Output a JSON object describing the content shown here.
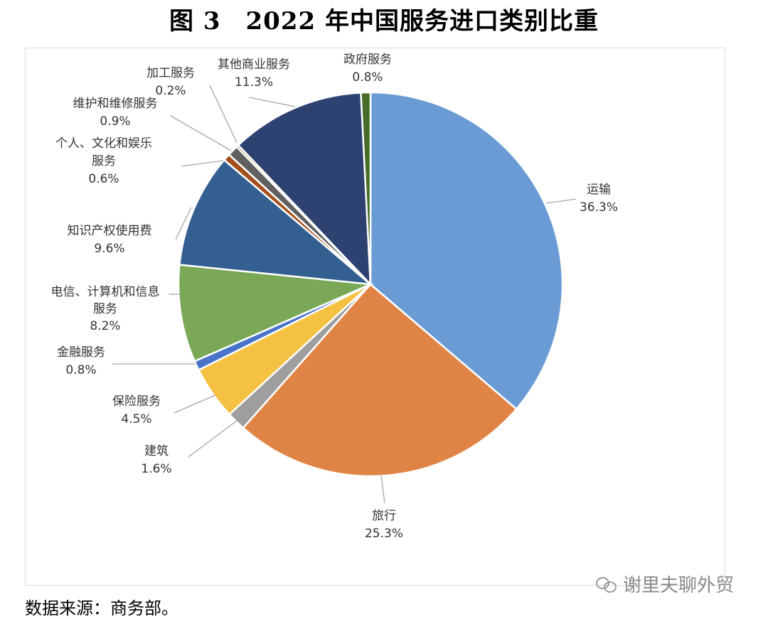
{
  "title": "图 3　2022 年中国服务进口类别比重",
  "source": "数据来源：商务部。",
  "watermark": "谢里夫聊外贸",
  "chart_data": {
    "type": "pie",
    "title": "图 3　2022 年中国服务进口类别比重",
    "start": "12 o'clock, clockwise",
    "slices": [
      {
        "label": "运输",
        "value": 36.3,
        "value_label": "36.3%",
        "color": "#6a9bd4"
      },
      {
        "label": "旅行",
        "value": 25.3,
        "value_label": "25.3%",
        "color": "#e08446"
      },
      {
        "label": "建筑",
        "value": 1.6,
        "value_label": "1.6%",
        "color": "#9e9e9e"
      },
      {
        "label": "保险服务",
        "value": 4.5,
        "value_label": "4.5%",
        "color": "#f5c142"
      },
      {
        "label": "金融服务",
        "value": 0.8,
        "value_label": "0.8%",
        "color": "#4a74c9"
      },
      {
        "label": "电信、计算机和信息服务",
        "value": 8.2,
        "value_label": "8.2%",
        "color": "#7aa857"
      },
      {
        "label": "知识产权使用费",
        "value": 9.6,
        "value_label": "9.6%",
        "color": "#335f91"
      },
      {
        "label": "个人、文化和娱乐服务",
        "value": 0.6,
        "value_label": "0.6%",
        "color": "#a34e1c"
      },
      {
        "label": "维护和维修服务",
        "value": 0.9,
        "value_label": "0.9%",
        "color": "#606060"
      },
      {
        "label": "加工服务",
        "value": 0.2,
        "value_label": "0.2%",
        "color": "#9c7b0f"
      },
      {
        "label": "其他商业服务",
        "value": 11.3,
        "value_label": "11.3%",
        "color": "#2e4272"
      },
      {
        "label": "政府服务",
        "value": 0.8,
        "value_label": "0.8%",
        "color": "#486b2a"
      }
    ]
  }
}
